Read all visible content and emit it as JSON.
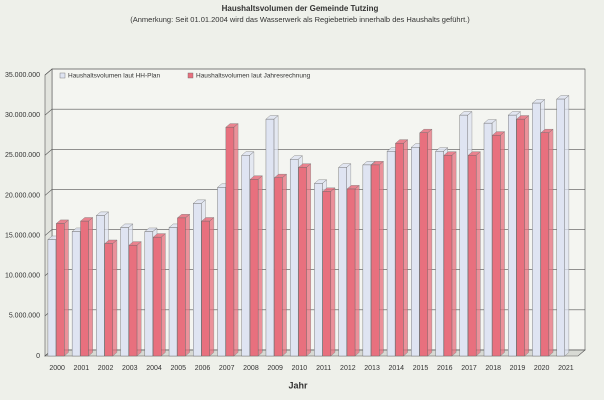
{
  "chart_data": {
    "type": "bar3d",
    "title": "Haushaltsvolumen der Gemeinde Tutzing",
    "subtitle": "(Anmerkung: Seit 01.01.2004 wird das Wasserwerk als Regiebetrieb innerhalb des Haushalts geführt.)",
    "x_label": "Jahr",
    "categories": [
      "2000",
      "2001",
      "2002",
      "2003",
      "2004",
      "2005",
      "2006",
      "2007",
      "2008",
      "2009",
      "2010",
      "2011",
      "2012",
      "2013",
      "2014",
      "2015",
      "2016",
      "2017",
      "2018",
      "2019",
      "2020",
      "2021"
    ],
    "series": [
      {
        "name": "Haushaltsvolumen laut HH-Plan",
        "color": "#dfe4f2",
        "values": [
          14500000,
          15500000,
          17500000,
          16000000,
          15500000,
          16000000,
          19000000,
          21000000,
          25000000,
          29500000,
          24500000,
          21500000,
          23500000,
          23800000,
          25500000,
          26000000,
          25500000,
          30000000,
          29000000,
          30000000,
          31500000,
          32000000
        ]
      },
      {
        "name": "Haushaltsvolumen laut Jahresrechnung",
        "color": "#e8707e",
        "values": [
          16500000,
          16800000,
          14000000,
          13800000,
          14800000,
          17200000,
          16800000,
          28500000,
          22000000,
          22200000,
          23500000,
          20500000,
          20800000,
          23800000,
          26500000,
          27800000,
          25000000,
          25000000,
          27500000,
          29500000,
          27800000,
          null
        ]
      }
    ],
    "ylim": [
      0,
      35000000
    ],
    "yticks": [
      {
        "value": 0,
        "label": "0"
      },
      {
        "value": 5000000,
        "label": "5.000.000"
      },
      {
        "value": 10000000,
        "label": "10.000.000"
      },
      {
        "value": 15000000,
        "label": "15.000.000"
      },
      {
        "value": 20000000,
        "label": "20.000.000"
      },
      {
        "value": 25000000,
        "label": "25.000.000"
      },
      {
        "value": 30000000,
        "label": "30.000.000"
      },
      {
        "value": 35000000,
        "label": "35.000.000"
      }
    ],
    "grid": true,
    "legend": "top-left"
  }
}
